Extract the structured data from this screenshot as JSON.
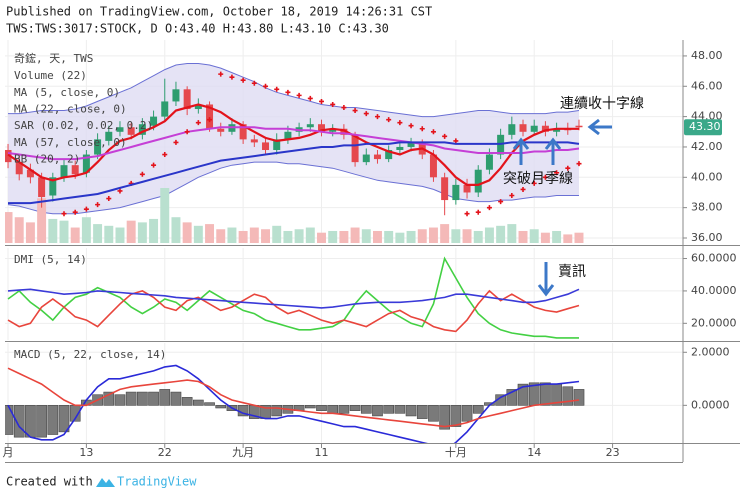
{
  "chart_data": [
    {
      "type": "candlestick",
      "title": "Published on TradingView.com, October 18, 2019 14:26:31 CST",
      "subtitle": "TWS:TWS:3017:STOCK, D O:43.40 H:43.80 L:43.10 C:43.30",
      "symbol": "奇鋐, 天, TWS",
      "up_color": "#2e9d6f",
      "down_color": "#e5484d",
      "open": [
        41.8,
        41.0,
        40.5,
        40.0,
        38.8,
        40.0,
        40.8,
        40.3,
        41.5,
        42.4,
        43.0,
        43.3,
        42.8,
        43.4,
        44.0,
        45.0,
        45.8,
        44.5,
        44.8,
        43.2,
        43.0,
        43.5,
        42.5,
        42.3,
        41.8,
        42.5,
        43.0,
        43.3,
        43.5,
        43.0,
        43.2,
        42.8,
        41.0,
        41.5,
        41.2,
        41.8,
        42.0,
        42.3,
        41.5,
        40.0,
        38.5,
        39.5,
        39.0,
        40.5,
        41.5,
        42.8,
        43.5,
        43.0,
        43.4,
        43.0,
        43.2,
        43.4
      ],
      "high": [
        42.2,
        41.4,
        40.9,
        40.3,
        40.3,
        41.2,
        41.1,
        41.8,
        42.9,
        43.4,
        43.7,
        43.6,
        43.9,
        44.4,
        46.5,
        46.3,
        46.0,
        45.2,
        45.0,
        43.6,
        43.9,
        43.7,
        42.8,
        42.6,
        42.9,
        43.4,
        43.6,
        43.9,
        43.8,
        43.5,
        43.5,
        43.0,
        41.9,
        41.8,
        42.1,
        42.3,
        42.6,
        42.5,
        41.8,
        40.3,
        39.9,
        39.9,
        40.8,
        41.9,
        43.2,
        44.0,
        43.8,
        43.8,
        43.7,
        43.6,
        43.6,
        43.8
      ],
      "low": [
        40.6,
        39.8,
        39.6,
        38.0,
        38.4,
        39.7,
        39.9,
        40.0,
        41.2,
        42.1,
        42.7,
        42.5,
        42.5,
        43.1,
        43.7,
        44.7,
        44.1,
        44.2,
        43.0,
        42.7,
        42.8,
        42.2,
        42.0,
        41.5,
        41.5,
        42.2,
        42.7,
        43.0,
        42.7,
        42.7,
        42.5,
        40.7,
        40.8,
        40.9,
        41.0,
        41.5,
        41.7,
        41.2,
        39.7,
        37.5,
        38.2,
        38.6,
        38.7,
        40.2,
        41.2,
        42.5,
        42.7,
        42.8,
        42.7,
        42.7,
        42.8,
        43.1
      ],
      "close": [
        41.0,
        40.2,
        40.0,
        38.7,
        40.0,
        40.8,
        40.2,
        41.5,
        42.5,
        43.0,
        43.3,
        42.8,
        43.5,
        44.0,
        45.0,
        45.8,
        44.5,
        44.8,
        43.2,
        43.0,
        43.5,
        42.5,
        42.3,
        41.8,
        42.5,
        43.0,
        43.3,
        43.5,
        43.0,
        43.2,
        42.8,
        41.0,
        41.5,
        41.2,
        41.8,
        42.0,
        42.3,
        41.5,
        40.0,
        38.5,
        39.5,
        39.0,
        40.5,
        41.5,
        42.8,
        43.5,
        43.0,
        43.4,
        43.0,
        43.2,
        43.1,
        43.3
      ],
      "volume": {
        "name": "Volume (22)",
        "up_color": "#b9e0cf",
        "down_color": "#f4b9b8",
        "values": [
          1800,
          1500,
          1200,
          2600,
          1400,
          1300,
          900,
          1500,
          1100,
          1000,
          900,
          1300,
          1200,
          1400,
          3200,
          1500,
          1200,
          1000,
          1100,
          800,
          900,
          700,
          900,
          800,
          1000,
          700,
          800,
          900,
          600,
          700,
          700,
          900,
          800,
          700,
          700,
          600,
          700,
          800,
          900,
          1100,
          800,
          800,
          700,
          900,
          1000,
          1100,
          700,
          800,
          600,
          700,
          500,
          600
        ]
      },
      "series": [
        {
          "name": "MA (5, close, 0)",
          "color": "#e3131b",
          "width": 2.2,
          "values": [
            41.5,
            41.0,
            40.5,
            40.0,
            39.8,
            40.0,
            40.1,
            40.3,
            41.0,
            41.8,
            42.4,
            42.6,
            43.0,
            43.3,
            43.7,
            44.4,
            44.6,
            44.8,
            44.6,
            44.3,
            43.8,
            43.4,
            43.0,
            42.6,
            42.4,
            42.5,
            42.6,
            42.8,
            43.1,
            43.2,
            43.1,
            42.7,
            42.3,
            42.0,
            41.7,
            41.5,
            41.8,
            41.9,
            41.5,
            40.8,
            40.0,
            39.5,
            39.5,
            39.8,
            40.6,
            41.6,
            42.4,
            42.8,
            43.1,
            43.2,
            43.2,
            43.2
          ]
        },
        {
          "name": "MA (22, close, 0)",
          "color": "#c53fd6",
          "width": 2,
          "values": [
            41.6,
            41.5,
            41.4,
            41.3,
            41.2,
            41.2,
            41.2,
            41.3,
            41.4,
            41.6,
            41.8,
            42.0,
            42.2,
            42.4,
            42.6,
            42.8,
            43.0,
            43.1,
            43.2,
            43.3,
            43.3,
            43.3,
            43.3,
            43.2,
            43.2,
            43.2,
            43.1,
            43.1,
            43.0,
            42.9,
            42.9,
            42.8,
            42.7,
            42.6,
            42.5,
            42.4,
            42.3,
            42.2,
            42.1,
            41.9,
            41.8,
            41.7,
            41.6,
            41.6,
            41.6,
            41.6,
            41.6,
            41.7,
            41.7,
            41.8,
            41.8,
            41.9
          ]
        },
        {
          "name": "SAR (0.02, 0.02, 0.2)",
          "color": "#e3131b",
          "style": "cross",
          "values": [
            null,
            null,
            null,
            null,
            null,
            37.6,
            37.7,
            37.9,
            38.2,
            38.6,
            39.1,
            39.6,
            40.2,
            40.8,
            41.5,
            42.3,
            43.0,
            43.6,
            43.8,
            46.8,
            46.6,
            46.4,
            46.2,
            46.0,
            45.8,
            45.6,
            45.4,
            45.2,
            45.0,
            44.8,
            44.6,
            44.4,
            44.2,
            44.0,
            43.8,
            43.6,
            43.4,
            43.2,
            43.0,
            42.7,
            42.4,
            37.6,
            37.7,
            38.0,
            38.4,
            38.8,
            39.2,
            39.6,
            40.0,
            40.3,
            40.6,
            40.9
          ]
        },
        {
          "name": "MA (57, close, 0)",
          "color": "#2a36c9",
          "width": 2,
          "values": [
            38.3,
            38.3,
            38.3,
            38.4,
            38.5,
            38.6,
            38.7,
            38.8,
            38.9,
            39.1,
            39.3,
            39.5,
            39.7,
            39.9,
            40.1,
            40.3,
            40.5,
            40.7,
            40.9,
            41.1,
            41.2,
            41.3,
            41.4,
            41.5,
            41.6,
            41.7,
            41.8,
            41.9,
            42.0,
            42.0,
            42.1,
            42.1,
            42.2,
            42.2,
            42.2,
            42.3,
            42.3,
            42.3,
            42.3,
            42.3,
            42.2,
            42.2,
            42.2,
            42.2,
            42.2,
            42.3,
            42.3,
            42.3,
            42.3,
            42.3,
            42.3,
            42.2
          ]
        },
        {
          "name": "BB (20, 2)",
          "color": "#6a70d4",
          "fill": "#dedcf2",
          "style": "band",
          "values": [
            44.2,
            44.2,
            44.3,
            44.4,
            44.4,
            44.4,
            44.5,
            44.7,
            45.0,
            45.3,
            45.6,
            45.9,
            46.3,
            46.7,
            47.1,
            47.4,
            47.5,
            47.5,
            47.4,
            47.2,
            46.9,
            46.6,
            46.3,
            45.9,
            45.6,
            45.4,
            45.2,
            45.0,
            44.8,
            44.7,
            44.6,
            44.6,
            44.5,
            44.4,
            44.3,
            44.2,
            44.1,
            44.0,
            44.0,
            44.1,
            44.2,
            44.3,
            44.4,
            44.4,
            44.3,
            44.2,
            44.2,
            44.2,
            44.2,
            44.3,
            44.3,
            44.4
          ],
          "lower": [
            38.2,
            38.1,
            37.9,
            37.7,
            37.6,
            37.6,
            37.6,
            37.7,
            37.8,
            37.9,
            38.0,
            38.2,
            38.4,
            38.6,
            38.8,
            39.2,
            39.6,
            40.0,
            40.3,
            40.6,
            40.8,
            40.9,
            41.0,
            41.0,
            41.0,
            40.9,
            40.9,
            40.8,
            40.7,
            40.6,
            40.4,
            40.2,
            40.0,
            39.8,
            39.7,
            39.6,
            39.5,
            39.4,
            39.2,
            38.9,
            38.6,
            38.5,
            38.4,
            38.4,
            38.5,
            38.5,
            38.6,
            38.7,
            38.7,
            38.8,
            38.8,
            38.8
          ]
        }
      ],
      "price_label": {
        "value": 43.3,
        "label": "43.30",
        "color": "#3aa889"
      },
      "annotations": [
        "連續收十字線",
        "突破月季線"
      ],
      "ylim": [
        35.67,
        49.05
      ],
      "yticks": [
        {
          "value": 48,
          "label": "48.00"
        },
        {
          "value": 46,
          "label": "46.00"
        },
        {
          "value": 44,
          "label": "44.00"
        },
        {
          "value": 42,
          "label": "42.00"
        },
        {
          "value": 40,
          "label": "40.00"
        },
        {
          "value": 38,
          "label": "38.00"
        },
        {
          "value": 36,
          "label": "36.00"
        }
      ],
      "grid": true
    },
    {
      "type": "line",
      "title": "DMI (5, 14)",
      "series": [
        {
          "color": "#43d043",
          "values": [
            35,
            40,
            33,
            28,
            22,
            30,
            36,
            38,
            42,
            39,
            36,
            30,
            26,
            30,
            35,
            33,
            28,
            34,
            40,
            36,
            32,
            28,
            26,
            22,
            20,
            18,
            16,
            16,
            17,
            18,
            22,
            32,
            40,
            34,
            28,
            24,
            20,
            18,
            32,
            60,
            48,
            36,
            26,
            20,
            16,
            14,
            13,
            12,
            12,
            11,
            11,
            11
          ]
        },
        {
          "color": "#e8453c",
          "values": [
            22,
            18,
            20,
            30,
            35,
            30,
            24,
            22,
            18,
            25,
            32,
            38,
            40,
            36,
            30,
            28,
            34,
            36,
            32,
            28,
            30,
            34,
            38,
            36,
            30,
            26,
            28,
            25,
            22,
            20,
            22,
            20,
            18,
            22,
            26,
            28,
            24,
            22,
            18,
            16,
            15,
            22,
            32,
            40,
            34,
            38,
            34,
            30,
            28,
            27,
            29,
            31
          ]
        },
        {
          "color": "#3a3ad8",
          "values": [
            40,
            40.5,
            41,
            40,
            39,
            38,
            38.5,
            39,
            40,
            39.5,
            39,
            38.5,
            38,
            37.5,
            37,
            36,
            35.5,
            35,
            34.5,
            34,
            33.5,
            33,
            32.5,
            32,
            31.5,
            31,
            30.5,
            30,
            29.5,
            30,
            31,
            32,
            32.5,
            33,
            33,
            33,
            33.5,
            34,
            35,
            36,
            38,
            38,
            37,
            36,
            35,
            34,
            33,
            33,
            34,
            36,
            38,
            41
          ]
        }
      ],
      "annotation": "賣訊",
      "ylim": [
        9.7,
        66.5
      ],
      "yticks": [
        {
          "value": 60,
          "label": "60.0000"
        },
        {
          "value": 40,
          "label": "40.0000"
        },
        {
          "value": 20,
          "label": "20.0000"
        }
      ],
      "grid": true
    },
    {
      "type": "line",
      "title": "MACD (5, 22, close, 14)",
      "histogram": {
        "color": "#7a7a7a",
        "values": [
          -1.1,
          -1.2,
          -1.2,
          -1.2,
          -1.1,
          -1.0,
          -0.6,
          0.2,
          0.4,
          0.5,
          0.4,
          0.5,
          0.5,
          0.5,
          0.6,
          0.5,
          0.3,
          0.2,
          0.1,
          -0.1,
          -0.2,
          -0.4,
          -0.5,
          -0.5,
          -0.4,
          -0.3,
          -0.2,
          -0.1,
          -0.2,
          -0.3,
          -0.3,
          -0.2,
          -0.3,
          -0.4,
          -0.3,
          -0.3,
          -0.4,
          -0.5,
          -0.6,
          -0.9,
          -0.8,
          -0.6,
          -0.3,
          0.1,
          0.4,
          0.6,
          0.8,
          0.85,
          0.85,
          0.8,
          0.7,
          0.6
        ]
      },
      "series": [
        {
          "color": "#2a2ad8",
          "values": [
            0.0,
            -0.8,
            -1.2,
            -1.3,
            -1.3,
            -1.1,
            -0.5,
            0.2,
            0.7,
            1.0,
            1.0,
            1.1,
            1.2,
            1.3,
            1.45,
            1.5,
            1.3,
            1.0,
            0.6,
            0.2,
            -0.1,
            -0.3,
            -0.4,
            -0.5,
            -0.5,
            -0.4,
            -0.4,
            -0.5,
            -0.6,
            -0.7,
            -0.8,
            -0.8,
            -0.9,
            -1.0,
            -1.1,
            -1.2,
            -1.3,
            -1.4,
            -1.5,
            -1.7,
            -1.4,
            -1.0,
            -0.5,
            0.0,
            0.3,
            0.5,
            0.7,
            0.75,
            0.8,
            0.8,
            0.85,
            0.9
          ]
        },
        {
          "color": "#e8453c",
          "values": [
            1.4,
            1.2,
            1.0,
            0.8,
            0.5,
            0.2,
            0.0,
            0.0,
            0.2,
            0.4,
            0.6,
            0.7,
            0.75,
            0.8,
            0.85,
            0.9,
            0.95,
            0.9,
            0.7,
            0.4,
            0.2,
            0.1,
            0.0,
            -0.1,
            -0.1,
            -0.15,
            -0.2,
            -0.25,
            -0.3,
            -0.3,
            -0.35,
            -0.4,
            -0.45,
            -0.5,
            -0.55,
            -0.6,
            -0.65,
            -0.7,
            -0.75,
            -0.8,
            -0.75,
            -0.65,
            -0.5,
            -0.4,
            -0.3,
            -0.2,
            -0.1,
            0.0,
            0.05,
            0.1,
            0.15,
            0.2
          ]
        }
      ],
      "ylim": [
        -1.42,
        2.35
      ],
      "yticks": [
        {
          "value": 2,
          "label": "2.0000"
        },
        {
          "value": 0,
          "label": "0.0000"
        }
      ],
      "xlim": [
        -0.27,
        60.29
      ],
      "xticks": [
        {
          "value": 0,
          "label": "月"
        },
        {
          "value": 7,
          "label": "13"
        },
        {
          "value": 14,
          "label": "22"
        },
        {
          "value": 21,
          "label": "九月"
        },
        {
          "value": 28,
          "label": "11"
        },
        {
          "value": 40,
          "label": "十月"
        },
        {
          "value": 47,
          "label": "14"
        },
        {
          "value": 54,
          "label": "23"
        }
      ],
      "grid": true
    }
  ],
  "footer": {
    "text": "Created with",
    "brand": "TradingView"
  }
}
